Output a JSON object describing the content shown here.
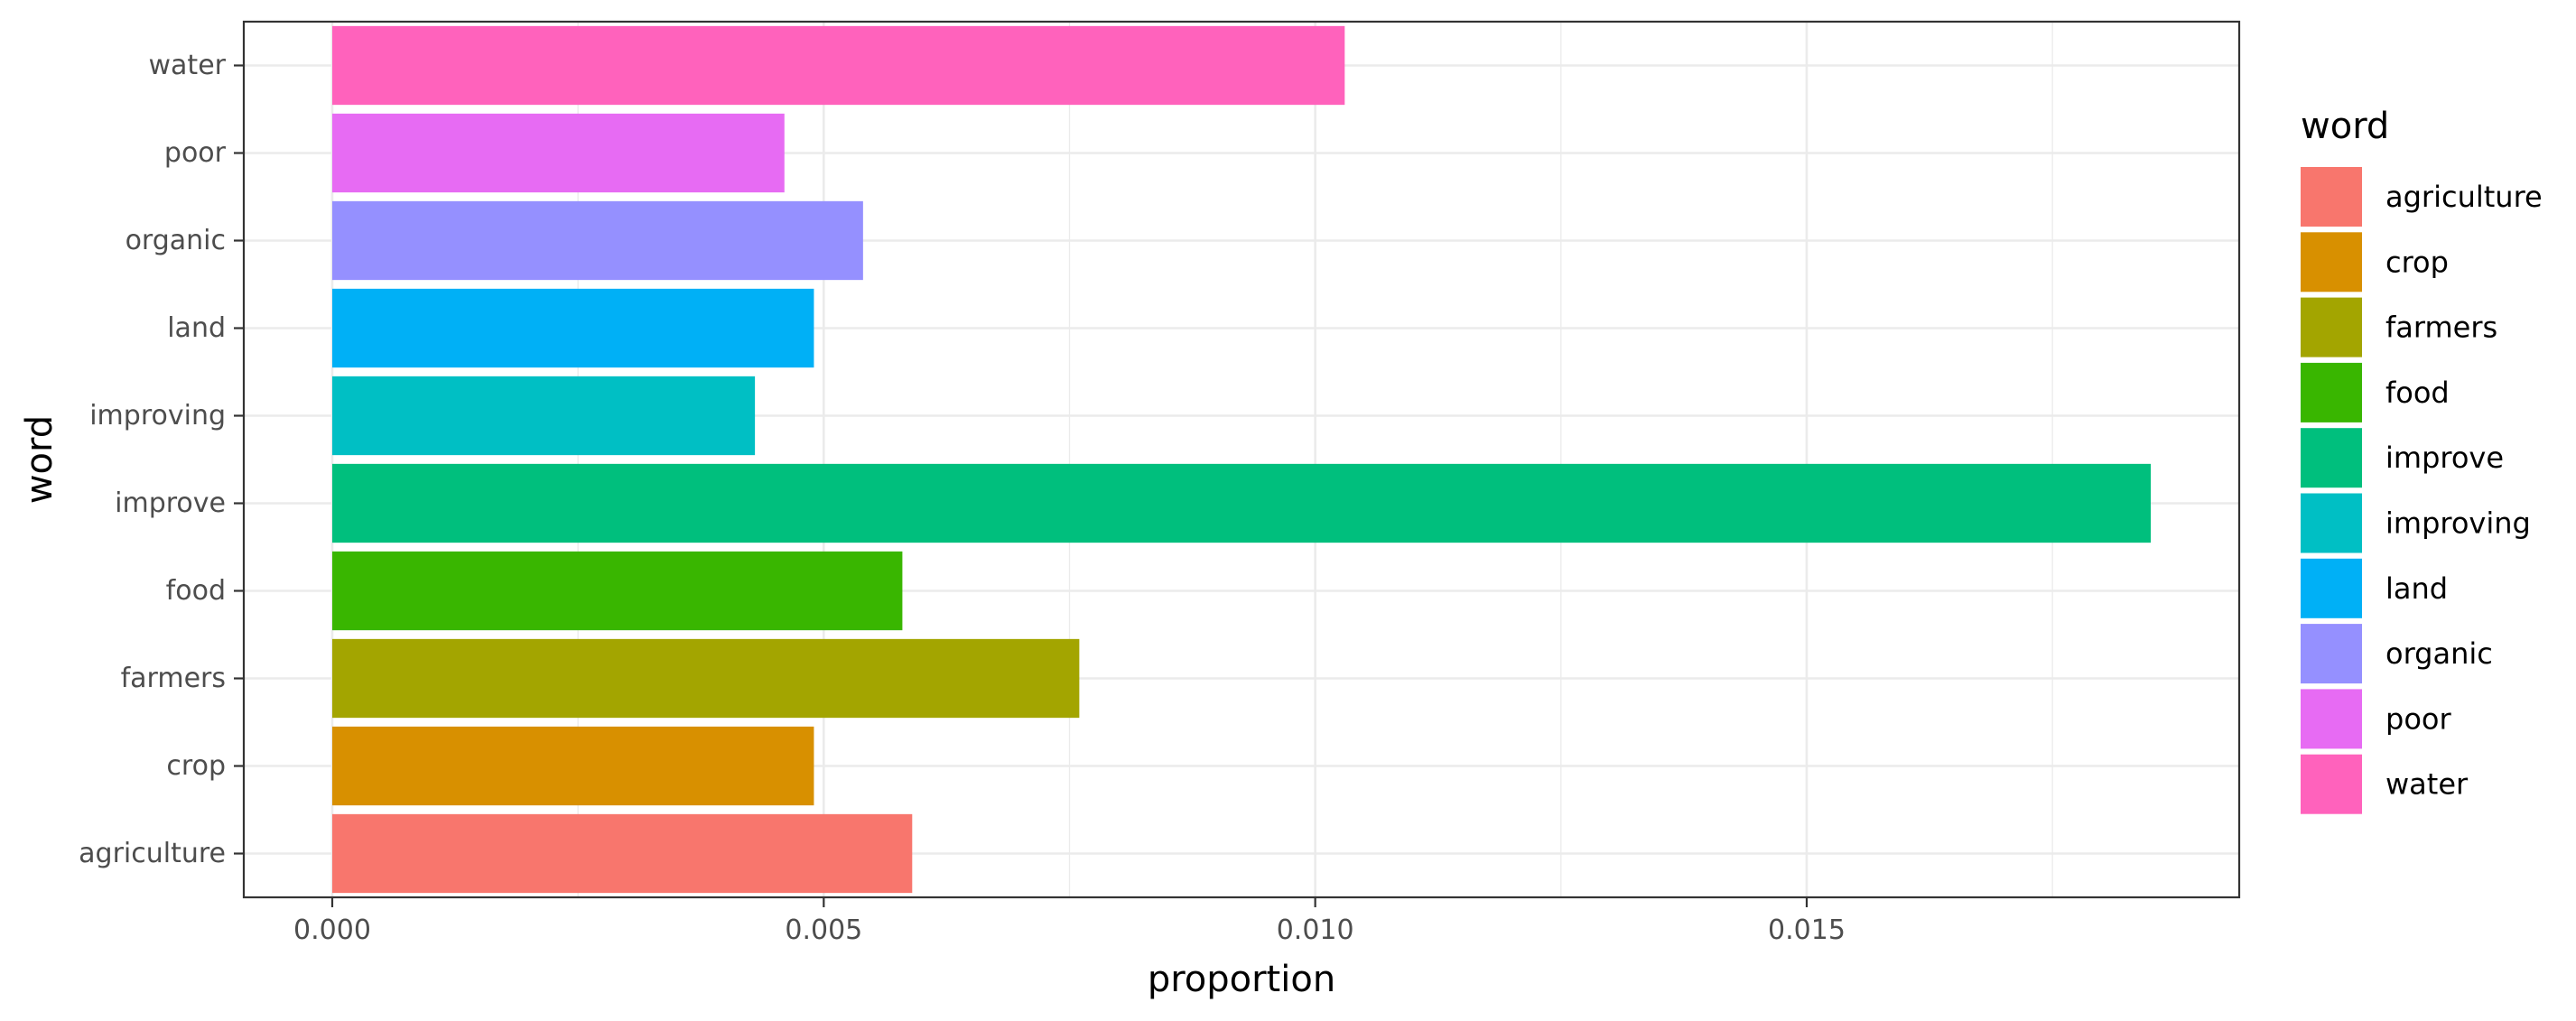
{
  "chart_data": {
    "type": "bar",
    "orientation": "horizontal",
    "categories": [
      "agriculture",
      "crop",
      "farmers",
      "food",
      "improve",
      "improving",
      "land",
      "organic",
      "poor",
      "water"
    ],
    "values": [
      0.0059,
      0.0049,
      0.0076,
      0.0058,
      0.0185,
      0.0043,
      0.0049,
      0.0054,
      0.0046,
      0.0103
    ],
    "colors": [
      "#F8766D",
      "#D89000",
      "#A3A500",
      "#39B600",
      "#00BF7D",
      "#00BFC4",
      "#00B0F6",
      "#9590FF",
      "#E76BF3",
      "#FF62BC"
    ],
    "xlabel": "proportion",
    "ylabel": "word",
    "xlim": [
      -0.0009,
      0.0194
    ],
    "xticks": [
      0.0,
      0.005,
      0.01,
      0.015
    ],
    "xtick_labels": [
      "0.000",
      "0.005",
      "0.010",
      "0.015"
    ],
    "grid": true,
    "legend": {
      "title": "word",
      "placement": "right",
      "entries": [
        "agriculture",
        "crop",
        "farmers",
        "food",
        "improve",
        "improving",
        "land",
        "organic",
        "poor",
        "water"
      ]
    }
  }
}
